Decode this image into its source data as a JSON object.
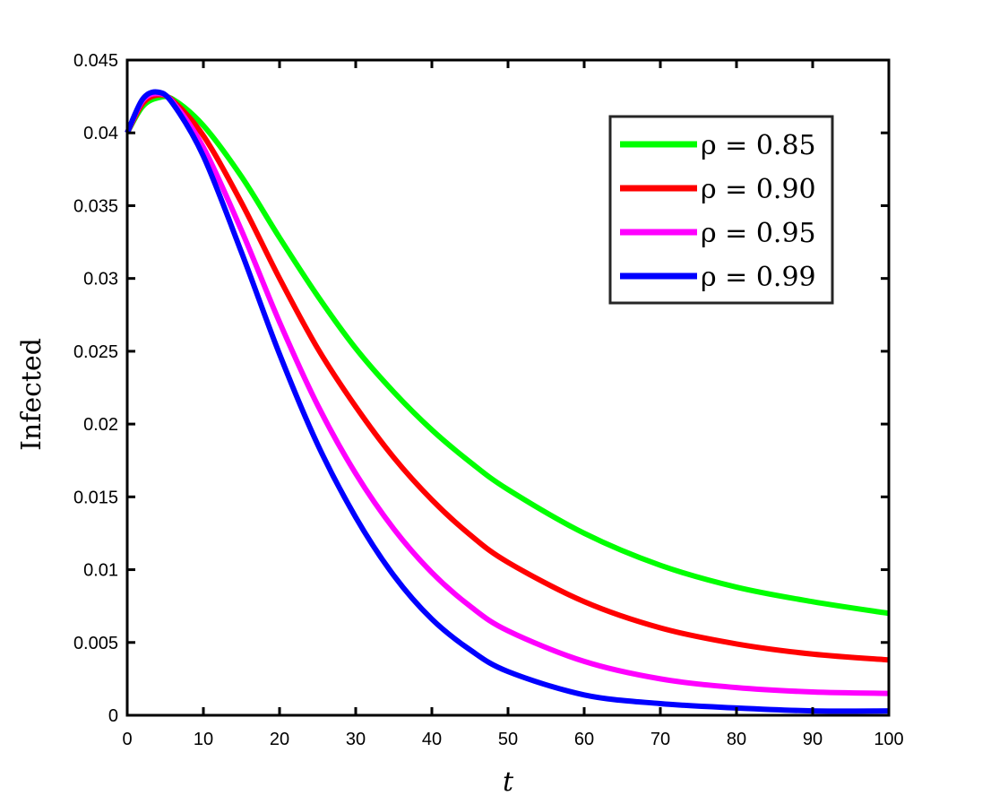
{
  "chart_data": {
    "type": "line",
    "xlabel": "t",
    "ylabel": "Infected",
    "xlim": [
      0,
      100
    ],
    "ylim": [
      0,
      0.045
    ],
    "xticks": [
      "0",
      "10",
      "20",
      "30",
      "40",
      "50",
      "60",
      "70",
      "80",
      "90",
      "100"
    ],
    "yticks": [
      "0",
      "0.005",
      "0.01",
      "0.015",
      "0.02",
      "0.025",
      "0.03",
      "0.035",
      "0.04",
      "0.045"
    ],
    "legend_position": "top-right",
    "grid": false,
    "x": [
      0,
      2,
      4,
      6,
      10,
      15,
      20,
      25,
      30,
      35,
      40,
      45,
      50,
      60,
      70,
      80,
      90,
      100
    ],
    "series": [
      {
        "name": "ρ = 0.85",
        "color": "#00ff00",
        "values": [
          0.04,
          0.0418,
          0.0424,
          0.0423,
          0.0405,
          0.037,
          0.0328,
          0.0288,
          0.0252,
          0.0222,
          0.0196,
          0.0174,
          0.0155,
          0.0125,
          0.0103,
          0.0088,
          0.0078,
          0.007
        ]
      },
      {
        "name": "ρ = 0.90",
        "color": "#ff0000",
        "values": [
          0.04,
          0.042,
          0.0426,
          0.0422,
          0.0398,
          0.0352,
          0.03,
          0.0252,
          0.0212,
          0.0177,
          0.0148,
          0.0124,
          0.0105,
          0.0078,
          0.006,
          0.0049,
          0.0042,
          0.0038
        ]
      },
      {
        "name": "ρ = 0.95",
        "color": "#ff00ff",
        "values": [
          0.04,
          0.0422,
          0.0427,
          0.0421,
          0.039,
          0.0333,
          0.027,
          0.0213,
          0.0166,
          0.0128,
          0.0098,
          0.0075,
          0.0058,
          0.0037,
          0.0025,
          0.0019,
          0.0016,
          0.0015
        ]
      },
      {
        "name": "ρ = 0.99",
        "color": "#0000ff",
        "values": [
          0.04,
          0.0423,
          0.0428,
          0.042,
          0.0384,
          0.0318,
          0.0248,
          0.0186,
          0.0136,
          0.0096,
          0.0066,
          0.0045,
          0.003,
          0.0014,
          0.0008,
          0.0005,
          0.0003,
          0.0003
        ]
      }
    ]
  }
}
